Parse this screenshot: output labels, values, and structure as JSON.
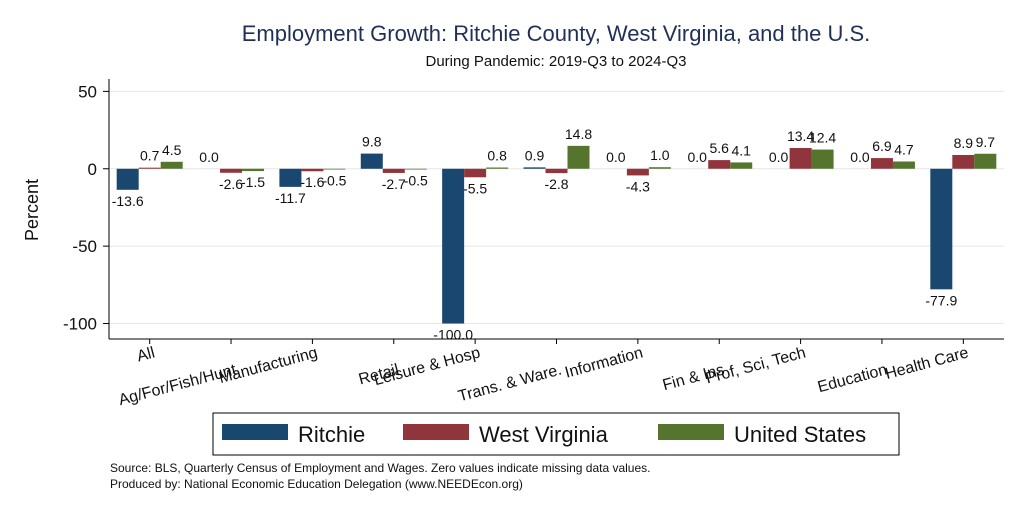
{
  "chart_data": {
    "type": "bar",
    "title": "Employment Growth: Ritchie County, West Virginia, and the U.S.",
    "subtitle": "During Pandemic: 2019-Q3 to 2024-Q3",
    "ylabel": "Percent",
    "xlabel": "",
    "ylim": [
      -110,
      58
    ],
    "yticks": [
      50,
      0,
      -50,
      -100
    ],
    "grid": true,
    "legend_position": "bottom",
    "categories": [
      "All",
      "Ag/For/Fish/Hunt",
      "Manufacturing",
      "Retail",
      "Leisure & Hosp",
      "Trans. & Ware.",
      "Information",
      "Fin & Ins",
      "Prof, Sci, Tech",
      "Education",
      "Health Care"
    ],
    "series": [
      {
        "name": "Ritchie",
        "color": "#1a476f",
        "values": [
          -13.6,
          0.0,
          -11.7,
          9.8,
          -100.0,
          0.9,
          0.0,
          0.0,
          0.0,
          0.0,
          -77.9
        ],
        "labels": [
          "-13.6",
          "0.0",
          "-11.7",
          "9.8",
          "-100.0",
          "0.9",
          "0.0",
          "0.0",
          "0.0",
          "0.0",
          "-77.9"
        ]
      },
      {
        "name": "West Virginia",
        "color": "#90353b",
        "values": [
          0.7,
          -2.6,
          -1.6,
          -2.7,
          -5.5,
          -2.8,
          -4.3,
          5.6,
          13.4,
          6.9,
          8.9
        ],
        "labels": [
          "0.7",
          "-2.6",
          "-1.6",
          "-2.7",
          "-5.5",
          "-2.8",
          "-4.3",
          "5.6",
          "13.4",
          "6.9",
          "8.9"
        ]
      },
      {
        "name": "United States",
        "color": "#55752f",
        "values": [
          4.5,
          -1.5,
          -0.5,
          -0.5,
          0.8,
          14.8,
          1.0,
          4.1,
          12.4,
          4.7,
          9.7
        ],
        "labels": [
          "4.5",
          "-1.5",
          "-0.5",
          "-0.5",
          "0.8",
          "14.8",
          "1.0",
          "4.1",
          "12.4",
          "4.7",
          "9.7"
        ]
      }
    ]
  },
  "footer": {
    "source": "Source: BLS, Quarterly Census of Employment and Wages. Zero values indicate missing data values.",
    "produced_by": "Produced by: National Economic Education Delegation (www.NEEDEcon.org)"
  }
}
